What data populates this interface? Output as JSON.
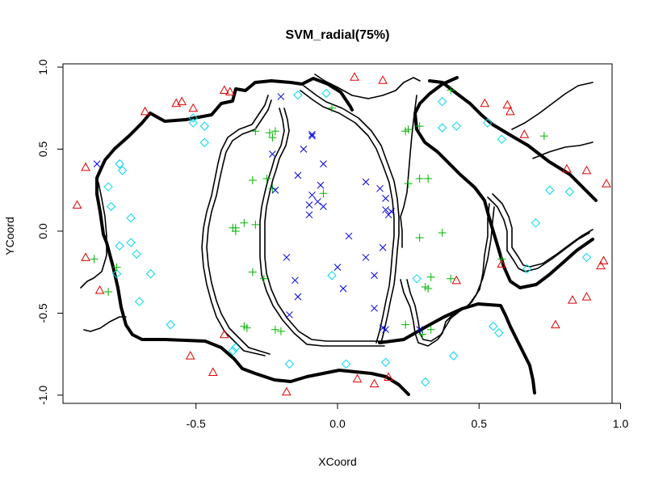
{
  "chart_data": {
    "type": "scatter",
    "title": "SVM_radial(75%)",
    "xlabel": "XCoord",
    "ylabel": "YCoord",
    "xlim": [
      -0.97,
      0.97
    ],
    "ylim": [
      -1.05,
      1.02
    ],
    "xticks": [
      -0.5,
      0.0,
      0.5,
      1.0
    ],
    "xtick_labels": [
      "-0.5",
      "0.0",
      "0.5",
      "1.0"
    ],
    "yticks": [
      -1.0,
      -0.5,
      0.0,
      0.5,
      1.0
    ],
    "ytick_labels": [
      "-1.0",
      "-0.5",
      "0.0",
      "0.5",
      "1.0"
    ],
    "grid": false,
    "legend": "none",
    "series": [
      {
        "marker": "triangle",
        "color": "#e00000",
        "points": [
          [
            0.06,
            0.94
          ],
          [
            0.16,
            0.92
          ],
          [
            -0.4,
            0.86
          ],
          [
            -0.38,
            0.85
          ],
          [
            -0.57,
            0.78
          ],
          [
            -0.55,
            0.79
          ],
          [
            -0.68,
            0.73
          ],
          [
            -0.51,
            0.75
          ],
          [
            -0.89,
            0.39
          ],
          [
            -0.92,
            0.16
          ],
          [
            -0.89,
            -0.16
          ],
          [
            -0.84,
            -0.36
          ],
          [
            -0.52,
            -0.76
          ],
          [
            -0.44,
            -0.86
          ],
          [
            -0.4,
            -0.63
          ],
          [
            -0.18,
            -0.98
          ],
          [
            0.07,
            -0.9
          ],
          [
            0.13,
            -0.93
          ],
          [
            0.18,
            -0.89
          ],
          [
            0.52,
            0.78
          ],
          [
            0.6,
            0.77
          ],
          [
            0.61,
            0.73
          ],
          [
            0.66,
            0.59
          ],
          [
            0.81,
            0.38
          ],
          [
            0.88,
            0.37
          ],
          [
            0.95,
            0.29
          ],
          [
            0.94,
            -0.18
          ],
          [
            0.93,
            -0.21
          ],
          [
            0.88,
            -0.4
          ],
          [
            0.83,
            -0.42
          ],
          [
            0.77,
            -0.57
          ],
          [
            0.58,
            -0.2
          ],
          [
            0.42,
            -0.3
          ]
        ]
      },
      {
        "marker": "diamond",
        "color": "#00d8ec",
        "points": [
          [
            -0.14,
            0.83
          ],
          [
            -0.04,
            0.84
          ],
          [
            0.37,
            0.79
          ],
          [
            0.42,
            0.64
          ],
          [
            0.37,
            0.63
          ],
          [
            0.53,
            0.66
          ],
          [
            0.58,
            0.56
          ],
          [
            -0.51,
            0.69
          ],
          [
            -0.51,
            0.66
          ],
          [
            -0.47,
            0.64
          ],
          [
            -0.47,
            0.54
          ],
          [
            -0.77,
            0.41
          ],
          [
            -0.76,
            0.37
          ],
          [
            -0.81,
            0.27
          ],
          [
            -0.8,
            0.15
          ],
          [
            -0.73,
            0.08
          ],
          [
            -0.73,
            -0.07
          ],
          [
            -0.77,
            -0.09
          ],
          [
            -0.71,
            -0.14
          ],
          [
            -0.66,
            -0.26
          ],
          [
            -0.78,
            -0.26
          ],
          [
            -0.7,
            -0.43
          ],
          [
            -0.59,
            -0.57
          ],
          [
            -0.36,
            -0.71
          ],
          [
            -0.37,
            -0.73
          ],
          [
            -0.17,
            -0.81
          ],
          [
            0.03,
            -0.81
          ],
          [
            0.17,
            -0.8
          ],
          [
            0.31,
            -0.92
          ],
          [
            0.41,
            -0.76
          ],
          [
            0.55,
            -0.58
          ],
          [
            0.57,
            -0.62
          ],
          [
            0.67,
            -0.23
          ],
          [
            0.7,
            0.05
          ],
          [
            0.75,
            0.25
          ],
          [
            0.82,
            0.24
          ],
          [
            0.88,
            -0.16
          ],
          [
            0.28,
            -0.29
          ],
          [
            -0.02,
            -0.27
          ]
        ]
      },
      {
        "marker": "plus",
        "color": "#00b400",
        "points": [
          [
            -0.02,
            0.75
          ],
          [
            0.4,
            0.86
          ],
          [
            -0.29,
            0.61
          ],
          [
            -0.24,
            0.6
          ],
          [
            -0.23,
            0.57
          ],
          [
            0.24,
            0.61
          ],
          [
            0.25,
            0.62
          ],
          [
            0.29,
            0.64
          ],
          [
            -0.22,
            0.61
          ],
          [
            -0.3,
            0.31
          ],
          [
            -0.25,
            0.32
          ],
          [
            -0.23,
            0.26
          ],
          [
            -0.33,
            0.05
          ],
          [
            -0.29,
            0.04
          ],
          [
            -0.37,
            0.02
          ],
          [
            -0.36,
            0.02
          ],
          [
            -0.36,
            0.0
          ],
          [
            -0.05,
            0.23
          ],
          [
            0.25,
            0.29
          ],
          [
            0.29,
            0.32
          ],
          [
            0.32,
            0.32
          ],
          [
            0.37,
            -0.01
          ],
          [
            0.29,
            -0.04
          ],
          [
            -0.3,
            -0.25
          ],
          [
            -0.26,
            -0.29
          ],
          [
            -0.33,
            -0.58
          ],
          [
            -0.32,
            -0.59
          ],
          [
            -0.22,
            -0.6
          ],
          [
            -0.2,
            -0.61
          ],
          [
            0.24,
            -0.57
          ],
          [
            0.3,
            -0.63
          ],
          [
            0.33,
            -0.6
          ],
          [
            0.31,
            -0.34
          ],
          [
            0.32,
            -0.35
          ],
          [
            0.33,
            -0.28
          ],
          [
            0.4,
            -0.29
          ],
          [
            0.58,
            -0.17
          ],
          [
            0.73,
            0.58
          ],
          [
            -0.86,
            -0.17
          ],
          [
            -0.78,
            -0.22
          ],
          [
            -0.81,
            -0.37
          ]
        ]
      },
      {
        "marker": "cross",
        "color": "#0000dc",
        "points": [
          [
            -0.2,
            0.82
          ],
          [
            -0.09,
            0.59
          ],
          [
            -0.09,
            0.58
          ],
          [
            -0.12,
            0.5
          ],
          [
            -0.23,
            0.47
          ],
          [
            -0.22,
            0.25
          ],
          [
            -0.14,
            0.34
          ],
          [
            -0.05,
            0.41
          ],
          [
            -0.06,
            0.28
          ],
          [
            -0.09,
            0.22
          ],
          [
            -0.1,
            0.16
          ],
          [
            -0.07,
            0.18
          ],
          [
            -0.05,
            0.15
          ],
          [
            -0.1,
            0.1
          ],
          [
            0.1,
            0.3
          ],
          [
            0.15,
            0.26
          ],
          [
            0.17,
            0.2
          ],
          [
            0.17,
            0.13
          ],
          [
            0.18,
            0.1
          ],
          [
            0.19,
            0.12
          ],
          [
            0.04,
            -0.03
          ],
          [
            0.1,
            -0.16
          ],
          [
            0.16,
            -0.1
          ],
          [
            0.0,
            -0.22
          ],
          [
            0.02,
            -0.35
          ],
          [
            0.13,
            -0.27
          ],
          [
            -0.18,
            -0.16
          ],
          [
            -0.15,
            -0.3
          ],
          [
            -0.14,
            -0.4
          ],
          [
            -0.17,
            -0.51
          ],
          [
            0.13,
            -0.47
          ],
          [
            0.16,
            -0.59
          ],
          [
            0.17,
            -0.6
          ],
          [
            0.29,
            -0.6
          ],
          [
            -0.85,
            0.41
          ]
        ]
      }
    ]
  }
}
